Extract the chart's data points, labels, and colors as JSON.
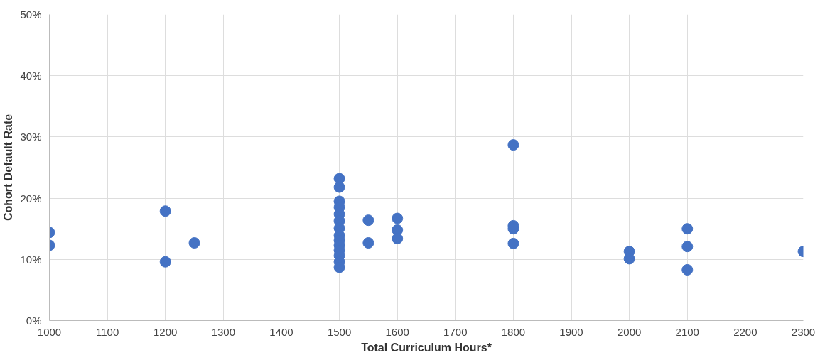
{
  "chart_data": {
    "type": "scatter",
    "xlabel": "Total Curriculum Hours*",
    "ylabel": "Cohort Default Rate",
    "series": [
      {
        "color": "#4472c4",
        "x": [
          1000,
          1000,
          1200,
          1200,
          1250,
          1500,
          1500,
          1500,
          1500,
          1500,
          1500,
          1500,
          1500,
          1500,
          1500,
          1500,
          1500,
          1500,
          1500,
          1550,
          1550,
          1600,
          1600,
          1600,
          1800,
          1800,
          1800,
          1800,
          2000,
          2000,
          2100,
          2100,
          2100,
          2300
        ],
        "values": [
          14.4,
          12.3,
          17.9,
          9.6,
          12.7,
          23.2,
          21.8,
          19.5,
          18.5,
          17.4,
          16.3,
          15.1,
          13.9,
          13.1,
          12.3,
          11.5,
          10.6,
          9.6,
          8.7,
          16.4,
          12.7,
          16.7,
          14.8,
          13.4,
          28.7,
          15.5,
          15.0,
          12.6,
          11.3,
          10.1,
          15.0,
          12.1,
          8.3,
          11.3
        ]
      }
    ],
    "xlim": [
      1000,
      2300
    ],
    "xticks": [
      1000,
      1100,
      1200,
      1300,
      1400,
      1500,
      1600,
      1700,
      1800,
      1900,
      2000,
      2100,
      2200,
      2300
    ],
    "ylim": [
      0,
      50
    ],
    "yticks": [
      {
        "value": 0,
        "label": "0%"
      },
      {
        "value": 10,
        "label": "10%"
      },
      {
        "value": 20,
        "label": "20%"
      },
      {
        "value": 30,
        "label": "30%"
      },
      {
        "value": 40,
        "label": "40%"
      },
      {
        "value": 50,
        "label": "50%"
      }
    ],
    "grid": true,
    "marker": "circle"
  }
}
